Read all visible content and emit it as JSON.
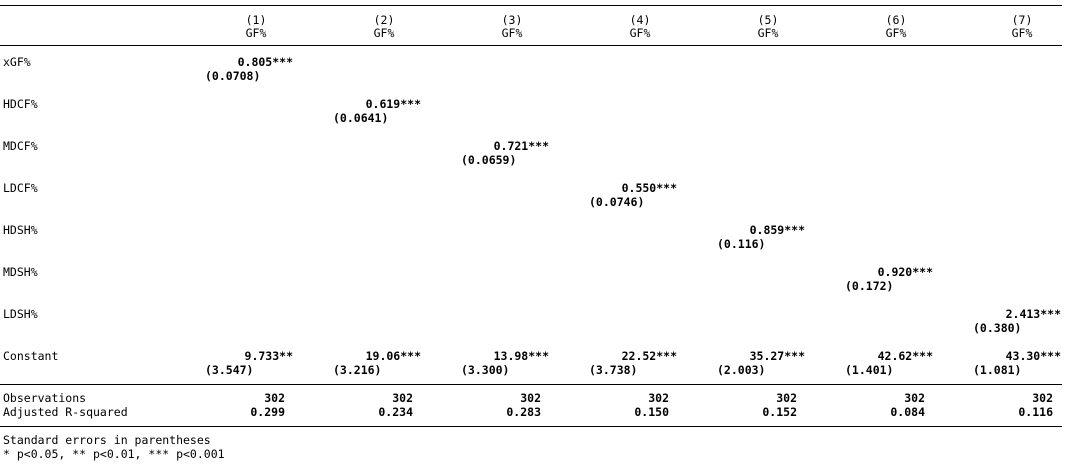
{
  "columns": [
    {
      "number": "(1)",
      "depvar": "GF%"
    },
    {
      "number": "(2)",
      "depvar": "GF%"
    },
    {
      "number": "(3)",
      "depvar": "GF%"
    },
    {
      "number": "(4)",
      "depvar": "GF%"
    },
    {
      "number": "(5)",
      "depvar": "GF%"
    },
    {
      "number": "(6)",
      "depvar": "GF%"
    },
    {
      "number": "(7)",
      "depvar": "GF%"
    }
  ],
  "variables": [
    {
      "label": "xGF%",
      "col": 0,
      "coef": "0.805***",
      "se": "(0.0708)"
    },
    {
      "label": "HDCF%",
      "col": 1,
      "coef": "0.619***",
      "se": "(0.0641)"
    },
    {
      "label": "MDCF%",
      "col": 2,
      "coef": "0.721***",
      "se": "(0.0659)"
    },
    {
      "label": "LDCF%",
      "col": 3,
      "coef": "0.550***",
      "se": "(0.0746)"
    },
    {
      "label": "HDSH%",
      "col": 4,
      "coef": "0.859***",
      "se": "(0.116)"
    },
    {
      "label": "MDSH%",
      "col": 5,
      "coef": "0.920***",
      "se": "(0.172)"
    },
    {
      "label": "LDSH%",
      "col": 6,
      "coef": "2.413***",
      "se": "(0.380)"
    }
  ],
  "constant": {
    "label": "Constant",
    "coefs": [
      "9.733**",
      "19.06***",
      "13.98***",
      "22.52***",
      "35.27***",
      "42.62***",
      "43.30***"
    ],
    "ses": [
      "(3.547)",
      "(3.216)",
      "(3.300)",
      "(3.738)",
      "(2.003)",
      "(1.401)",
      "(1.081)"
    ]
  },
  "observations": {
    "label": "Observations",
    "values": [
      "302",
      "302",
      "302",
      "302",
      "302",
      "302",
      "302"
    ]
  },
  "adj_r2": {
    "label": "Adjusted R-squared",
    "values": [
      "0.299",
      "0.234",
      "0.283",
      "0.150",
      "0.152",
      "0.084",
      "0.116"
    ]
  },
  "notes": [
    "Standard errors in parentheses",
    "* p<0.05, ** p<0.01, *** p<0.001"
  ]
}
